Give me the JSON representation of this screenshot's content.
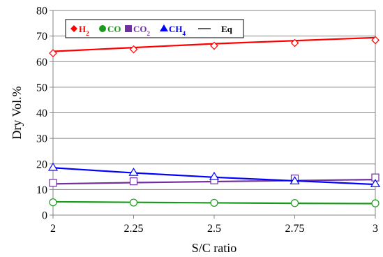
{
  "chart_data": {
    "type": "line",
    "title": "",
    "xlabel": "S/C ratio",
    "ylabel": "Dry Vol.%",
    "x": [
      2,
      2.25,
      2.5,
      2.75,
      3
    ],
    "x_tick_labels": [
      "2",
      "2.25",
      "2.5",
      "2.75",
      "3"
    ],
    "xlim": [
      2,
      3
    ],
    "ylim": [
      0,
      80
    ],
    "y_ticks": [
      0,
      10,
      20,
      30,
      40,
      50,
      60,
      70,
      80
    ],
    "y_tick_labels": [
      "0",
      "10",
      "20",
      "30",
      "40",
      "50",
      "60",
      "70",
      "80"
    ],
    "grid": true,
    "legend_position": "top-left",
    "series": [
      {
        "name": "H2",
        "marker": "diamond",
        "color": "#ff0000",
        "points": [
          63.3,
          64.8,
          66.2,
          67.3,
          68.4
        ],
        "eq": [
          64.0,
          65.5,
          67.0,
          68.2,
          69.4
        ]
      },
      {
        "name": "CO",
        "marker": "circle",
        "color": "#1a9a1a",
        "points": [
          5.0,
          4.9,
          4.8,
          4.7,
          4.6
        ],
        "eq": [
          5.2,
          5.0,
          4.8,
          4.6,
          4.5
        ]
      },
      {
        "name": "CO2",
        "marker": "square",
        "color": "#7030a0",
        "points": [
          12.6,
          13.2,
          13.6,
          14.3,
          14.7
        ],
        "eq": [
          12.2,
          12.7,
          13.1,
          13.5,
          13.9
        ]
      },
      {
        "name": "CH4",
        "marker": "triangle",
        "color": "#0000ff",
        "points": [
          18.6,
          16.6,
          15.0,
          13.3,
          12.2
        ],
        "eq": [
          18.5,
          16.5,
          14.8,
          13.4,
          12.0
        ]
      }
    ],
    "eq_label": "Eq",
    "legend": [
      {
        "base": "H",
        "sub": "2",
        "color": "#ff0000",
        "marker": "diamond"
      },
      {
        "base": "CO",
        "sub": "",
        "color": "#1a9a1a",
        "marker": "circle"
      },
      {
        "base": "CO",
        "sub": "2",
        "color": "#7030a0",
        "marker": "square"
      },
      {
        "base": "CH",
        "sub": "4",
        "color": "#0000ff",
        "marker": "triangle"
      }
    ]
  }
}
